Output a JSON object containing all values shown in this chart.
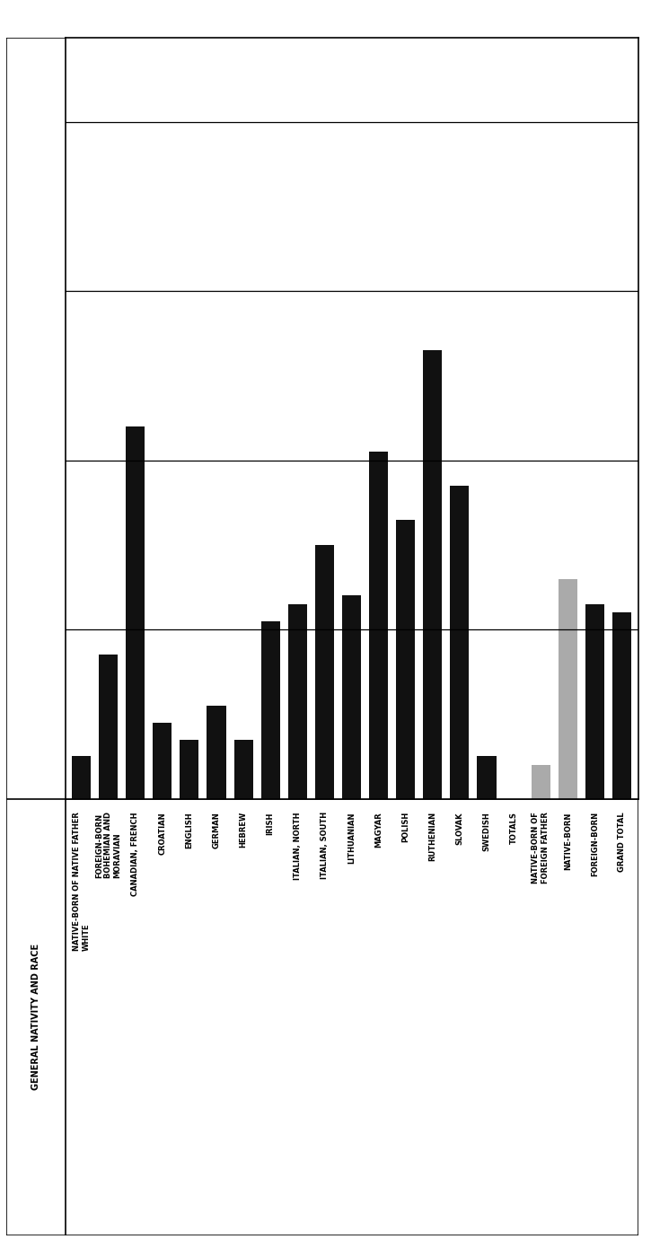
{
  "categories": [
    "NATIVE-BORN OF NATIVE FATHER\nWHITE",
    "FOREIGN-BORN\nBOHEMIAN AND\nMORAVIAN",
    "CANADIAN, FRENCH",
    "CROATIAN",
    "ENGLISH",
    "GERMAN",
    "HEBREW",
    "IRISH",
    "ITALIAN, NORTH",
    "ITALIAN, SOUTH",
    "LITHUANIAN",
    "MAGYAR",
    "POLISH",
    "RUTHENIAN",
    "SLOVAK",
    "SWEDISH",
    "TOTALS",
    "NATIVE-BORN OF\nFOREIGN FATHER",
    "NATIVE-BORN",
    "FOREIGN-BORN",
    "GRAND TOTAL"
  ],
  "values": [
    5,
    17,
    44,
    9,
    7,
    11,
    7,
    21,
    23,
    30,
    24,
    41,
    33,
    53,
    37,
    5,
    0,
    4,
    26,
    23,
    22
  ],
  "bar_colors": [
    "#111111",
    "#111111",
    "#111111",
    "#111111",
    "#111111",
    "#111111",
    "#111111",
    "#111111",
    "#111111",
    "#111111",
    "#111111",
    "#111111",
    "#111111",
    "#111111",
    "#111111",
    "#111111",
    "#111111",
    "#aaaaaa",
    "#aaaaaa",
    "#111111",
    "#111111"
  ],
  "left_label": "GENERAL NATIVITY AND RACE",
  "yticks": [
    20,
    40,
    60,
    80
  ],
  "ymax": 90,
  "bar_width": 0.7
}
